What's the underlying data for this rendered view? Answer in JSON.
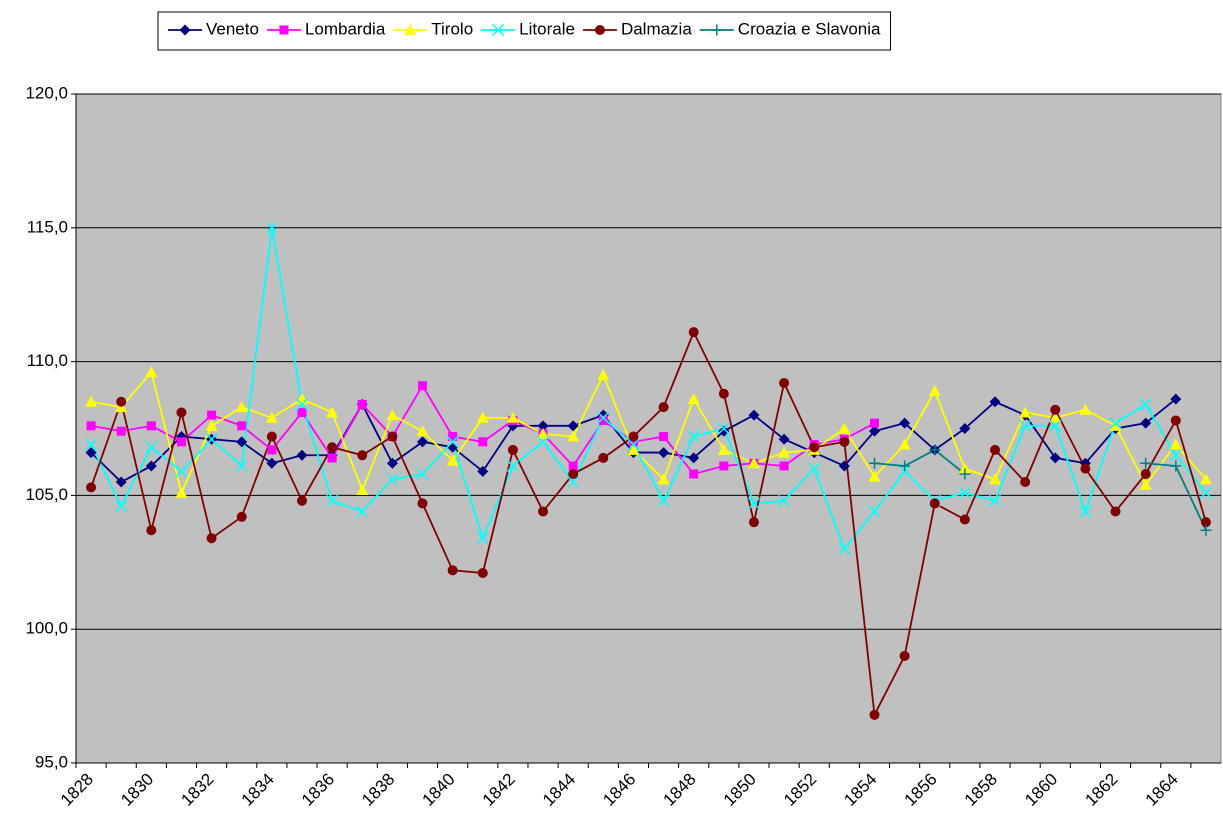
{
  "chart_data": {
    "type": "line",
    "categories": [
      "1828",
      null,
      "1830",
      null,
      "1832",
      null,
      "1834",
      null,
      "1836",
      null,
      "1838",
      null,
      "1840",
      null,
      "1842",
      null,
      "1844",
      null,
      "1846",
      null,
      "1848",
      null,
      "1850",
      null,
      "1852",
      null,
      "1854",
      null,
      "1856",
      null,
      "1858",
      null,
      "1860",
      null,
      "1862",
      null,
      "1864",
      null
    ],
    "series": [
      {
        "name": "Veneto",
        "color": "#000080",
        "marker": "diamond",
        "values": [
          106.6,
          105.5,
          106.1,
          107.2,
          107.1,
          107.0,
          106.2,
          106.5,
          106.5,
          108.4,
          106.2,
          107.0,
          106.8,
          105.9,
          107.6,
          107.6,
          107.6,
          108.0,
          106.6,
          106.6,
          106.4,
          107.4,
          108.0,
          107.1,
          106.6,
          106.1,
          107.4,
          107.7,
          106.7,
          107.5,
          108.5,
          108.0,
          106.4,
          106.2,
          107.5,
          107.7,
          108.6,
          null
        ]
      },
      {
        "name": "Lombardia",
        "color": "#ff00ff",
        "marker": "square",
        "values": [
          107.6,
          107.4,
          107.6,
          107.0,
          108.0,
          107.6,
          106.7,
          108.1,
          106.4,
          108.4,
          107.2,
          109.1,
          107.2,
          107.0,
          107.8,
          107.3,
          106.1,
          107.8,
          107.0,
          107.2,
          105.8,
          106.1,
          106.2,
          106.1,
          106.9,
          107.1,
          107.7,
          null,
          null,
          null,
          null,
          null,
          null,
          null,
          null,
          null,
          null,
          null
        ]
      },
      {
        "name": "Tirolo",
        "color": "#ffff00",
        "marker": "triangle",
        "values": [
          108.5,
          108.3,
          109.6,
          105.1,
          107.6,
          108.3,
          107.9,
          108.6,
          108.1,
          105.2,
          108.0,
          107.4,
          106.3,
          107.9,
          107.9,
          107.3,
          107.2,
          109.5,
          106.7,
          105.6,
          108.6,
          106.7,
          106.2,
          106.6,
          106.7,
          107.5,
          105.7,
          106.9,
          108.9,
          106.0,
          105.6,
          108.1,
          107.9,
          108.2,
          107.6,
          105.4,
          106.9,
          105.6
        ]
      },
      {
        "name": "Litorale",
        "color": "#00ffff",
        "marker": "x",
        "values": [
          106.9,
          104.6,
          106.8,
          105.9,
          107.1,
          106.1,
          115.0,
          108.4,
          104.8,
          104.4,
          105.6,
          105.8,
          107.0,
          103.4,
          106.1,
          107.0,
          105.5,
          107.9,
          106.9,
          104.8,
          107.2,
          107.5,
          104.7,
          104.8,
          106.0,
          103.0,
          104.4,
          105.9,
          104.8,
          105.1,
          104.8,
          107.6,
          107.6,
          104.4,
          107.7,
          108.4,
          106.5,
          105.1
        ]
      },
      {
        "name": "Dalmazia",
        "color": "#800000",
        "marker": "circle",
        "values": [
          105.3,
          108.5,
          103.7,
          108.1,
          103.4,
          104.2,
          107.2,
          104.8,
          106.8,
          106.5,
          107.2,
          104.7,
          102.2,
          102.1,
          106.7,
          104.4,
          105.8,
          106.4,
          107.2,
          108.3,
          111.1,
          108.8,
          104.0,
          109.2,
          106.8,
          107.0,
          96.8,
          99.0,
          104.7,
          104.1,
          106.7,
          105.5,
          108.2,
          106.0,
          104.4,
          105.8,
          107.8,
          104.0
        ]
      },
      {
        "name": "Croazia e Slavonia",
        "color": "#008080",
        "marker": "plus",
        "values": [
          null,
          null,
          null,
          null,
          null,
          null,
          null,
          null,
          null,
          null,
          null,
          null,
          null,
          null,
          null,
          null,
          null,
          null,
          null,
          null,
          null,
          null,
          null,
          null,
          null,
          null,
          106.2,
          106.1,
          106.7,
          105.8,
          null,
          null,
          null,
          null,
          null,
          106.2,
          106.1,
          103.7
        ]
      }
    ],
    "ylim": [
      95,
      120
    ],
    "yticks": [
      {
        "value": 95,
        "label": "95,0"
      },
      {
        "value": 100,
        "label": "100,0"
      },
      {
        "value": 105,
        "label": "105,0"
      },
      {
        "value": 110,
        "label": "110,0"
      },
      {
        "value": 115,
        "label": "115,0"
      },
      {
        "value": 120,
        "label": "120,0"
      }
    ],
    "grid": true,
    "legend": "top",
    "background": "#c0c0c0"
  }
}
